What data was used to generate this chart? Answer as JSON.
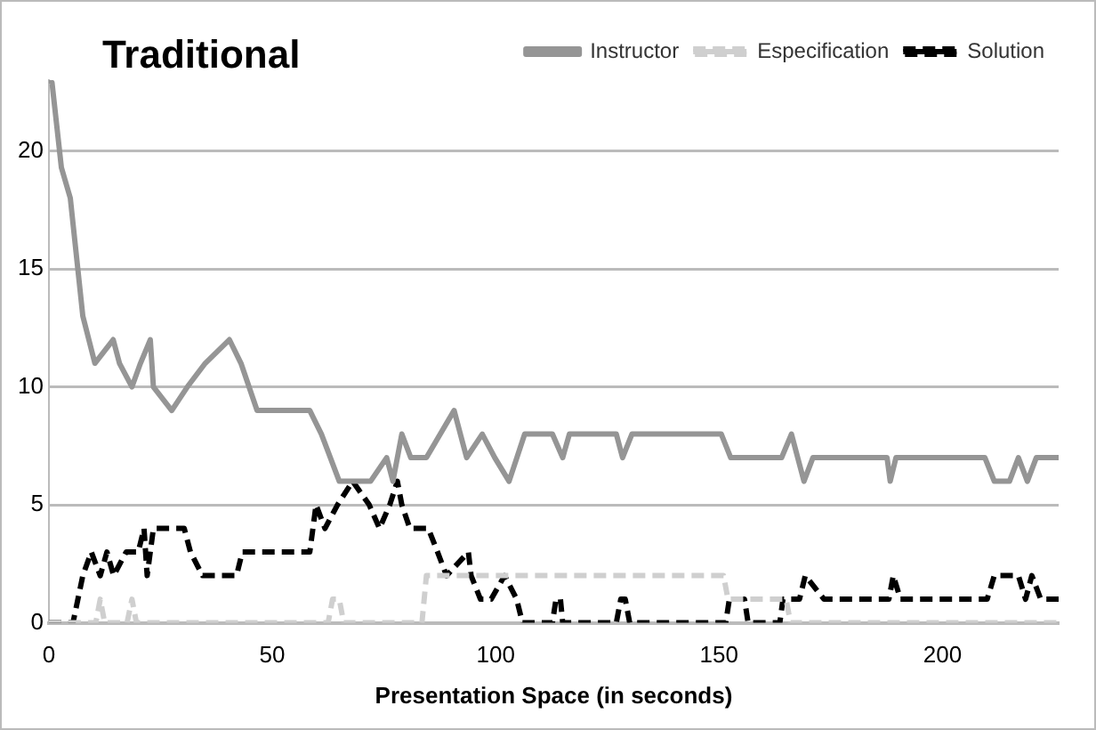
{
  "chart_data": {
    "type": "line",
    "title": "Traditional",
    "xlabel": "Presentation Space (in seconds)",
    "xlim": [
      0,
      226
    ],
    "xticks": [
      0,
      50,
      100,
      150,
      200
    ],
    "ylim": [
      0,
      23
    ],
    "yticks": [
      0,
      5,
      10,
      15,
      20
    ],
    "grid": "y",
    "legend": "top right",
    "marker": "none",
    "series": [
      {
        "name": "Instructor",
        "color": "#959595",
        "line_style": "solid",
        "x": [
          0,
          0.7,
          2.8,
          4.8,
          7.6,
          10.3,
          14.4,
          15.8,
          18.6,
          20.5,
          22.7,
          23.4,
          27.5,
          31,
          35,
          40.4,
          43,
          46.6,
          58.4,
          61,
          65,
          66.5,
          72,
          75.6,
          77,
          79,
          81,
          84.5,
          90.7,
          93.5,
          97,
          99.8,
          103,
          106.5,
          112.7,
          115,
          116.5,
          127,
          128.4,
          130.5,
          150.5,
          152.6,
          164,
          166.2,
          169,
          171,
          187.6,
          188.3,
          189.6,
          209.5,
          211.6,
          215,
          217,
          219,
          221,
          226
        ],
        "values": [
          23,
          22.9,
          19.3,
          18,
          13,
          11,
          12,
          11,
          10,
          11,
          12,
          10,
          9,
          10,
          11,
          12,
          11,
          9,
          9,
          8,
          6,
          6,
          6,
          7,
          6,
          8,
          7,
          7,
          9,
          7,
          8,
          7,
          6,
          8,
          8,
          7,
          8,
          8,
          7,
          8,
          8,
          7,
          7,
          8,
          6,
          7,
          7,
          6,
          7,
          7,
          6,
          6,
          7,
          6,
          7,
          7
        ]
      },
      {
        "name": "Especification",
        "color": "#cfcfcf",
        "line_style": "dashed",
        "x": [
          0,
          10.5,
          11.5,
          12.5,
          17.5,
          18.6,
          19.6,
          62.5,
          63.5,
          65,
          66,
          83.5,
          84.5,
          151,
          152,
          165,
          166,
          226
        ],
        "values": [
          0,
          0,
          1,
          0,
          0,
          1,
          0,
          0,
          1,
          1,
          0,
          0,
          2,
          2,
          1,
          1,
          0,
          0
        ]
      },
      {
        "name": "Solution",
        "color": "#000000",
        "line_style": "dashed",
        "x": [
          0,
          5.4,
          7.6,
          9.5,
          11.5,
          13,
          14.5,
          17.3,
          20,
          21.3,
          22,
          23.4,
          30.3,
          31.7,
          34.4,
          42,
          43.3,
          58.4,
          59.8,
          61.8,
          64.6,
          68,
          71.7,
          74,
          76.3,
          78,
          79,
          80.8,
          84.9,
          87,
          89,
          93.9,
          94.5,
          96.6,
          99,
          102,
          104.7,
          106,
          112.7,
          113.5,
          114.5,
          115,
          127,
          128,
          129,
          130,
          151.5,
          152.3,
          155.7,
          156.5,
          163.6,
          164.3,
          168,
          169.3,
          173.5,
          188,
          189,
          190.6,
          210,
          211.6,
          217,
          218.6,
          220,
          222,
          226
        ],
        "values": [
          0,
          0,
          2,
          3,
          2,
          3,
          2,
          3,
          3,
          4,
          2,
          4,
          4,
          3,
          2,
          2,
          3,
          3,
          5,
          4,
          5,
          6,
          5,
          4,
          5,
          6,
          5,
          4,
          4,
          3,
          2,
          3,
          2,
          1,
          1,
          2,
          1,
          0,
          0,
          1,
          1,
          0,
          0,
          1,
          1,
          0,
          0,
          1,
          1,
          0,
          0,
          1,
          1,
          2,
          1,
          1,
          2,
          1,
          1,
          2,
          2,
          1,
          2,
          1,
          1
        ]
      }
    ]
  }
}
